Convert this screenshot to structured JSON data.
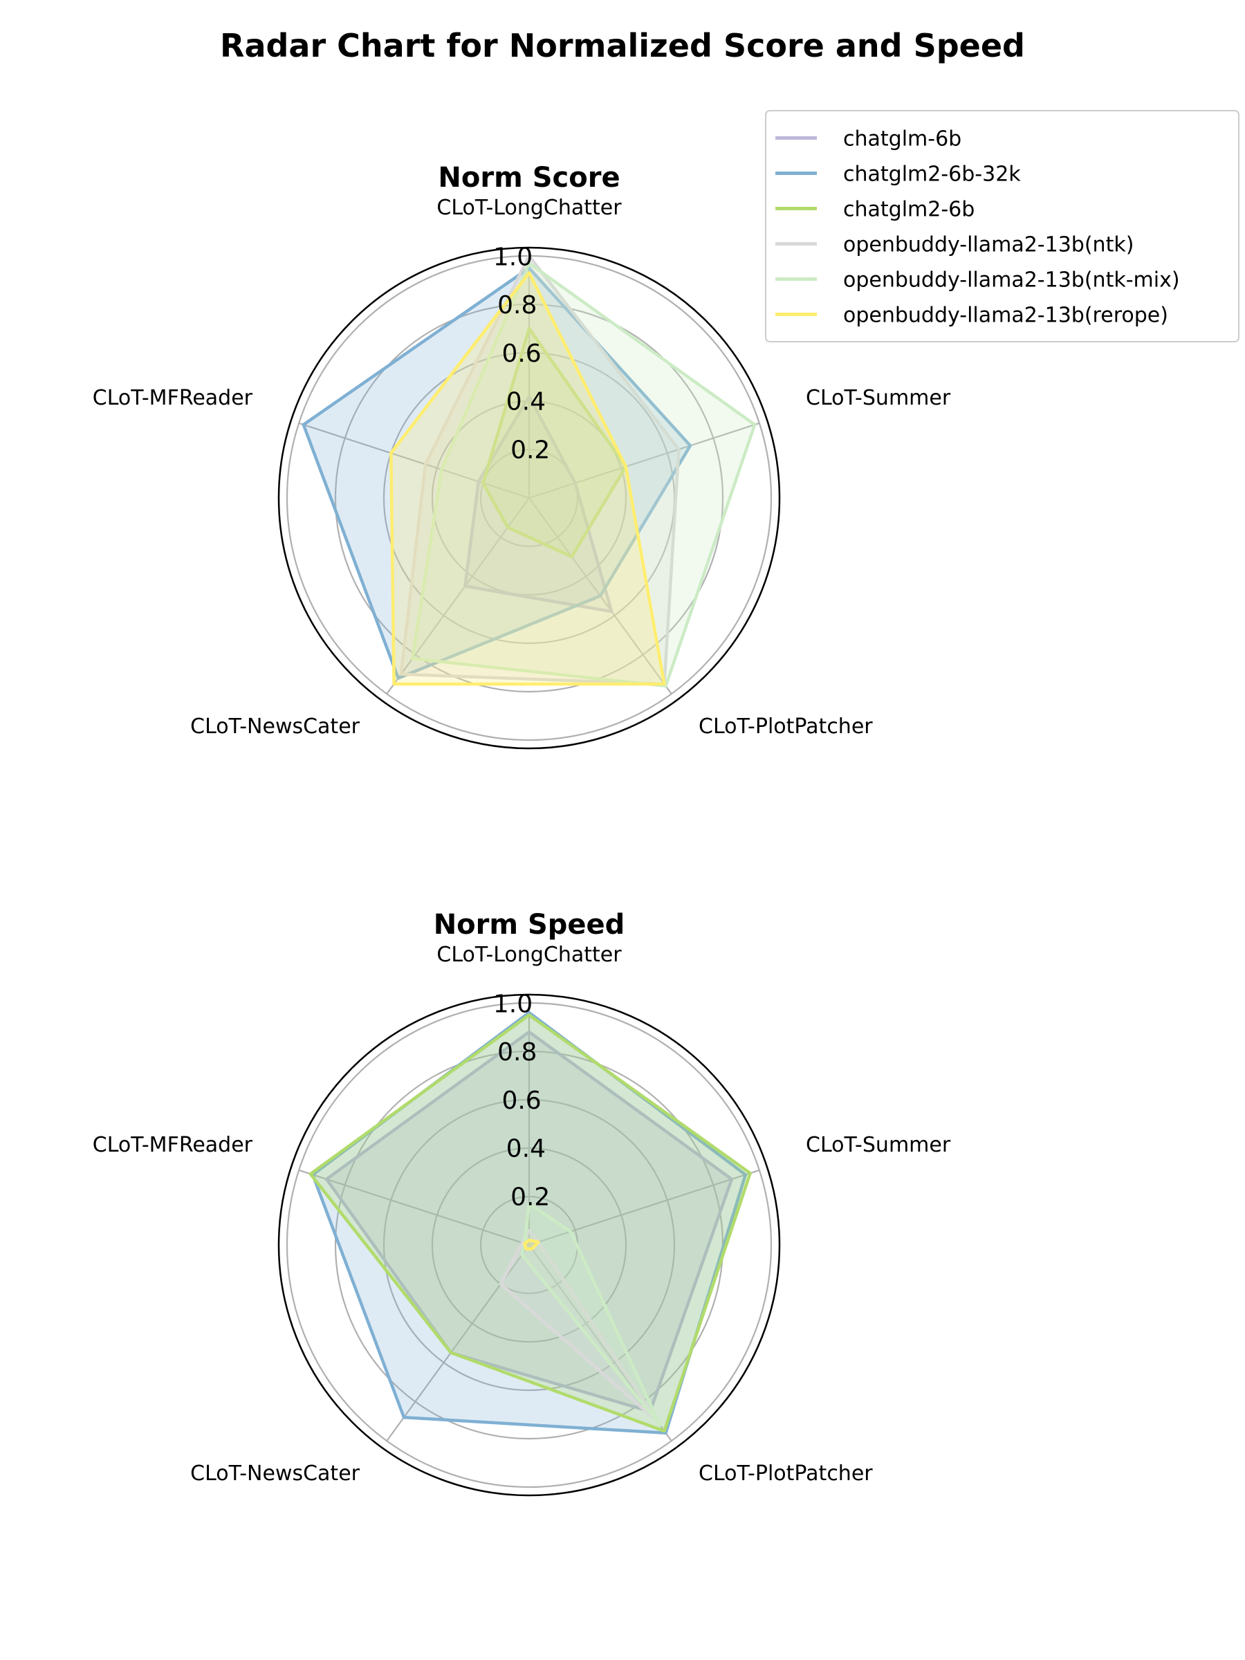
{
  "title": "Radar Chart for Normalized Score and Speed",
  "colors": {
    "chatglm-6b": "#bcb8d8",
    "chatglm2-6b-32k": "#7fb0d3",
    "chatglm2-6b": "#b1db6b",
    "openbuddy-llama2-13b(ntk)": "#d9d9d9",
    "openbuddy-llama2-13b(ntk-mix)": "#ccebc5",
    "openbuddy-llama2-13b(rerope)": "#ffed6f"
  },
  "legend": {
    "placement": "top-right",
    "entries": [
      "chatglm-6b",
      "chatglm2-6b-32k",
      "chatglm2-6b",
      "openbuddy-llama2-13b(ntk)",
      "openbuddy-llama2-13b(ntk-mix)",
      "openbuddy-llama2-13b(rerope)"
    ]
  },
  "chart_data": [
    {
      "type": "radar",
      "title": "Norm Score",
      "categories": [
        "CLoT-LongChatter",
        "CLoT-Summer",
        "CLoT-PlotPatcher",
        "CLoT-NewsCater",
        "CLoT-MFReader"
      ],
      "rlim": [
        0,
        1.0
      ],
      "rticks": [
        0.2,
        0.4,
        0.6,
        0.8,
        1.0
      ],
      "rtick_labels": [
        "0.2",
        "0.4",
        "0.6",
        "0.8",
        "1.0"
      ],
      "grid": true,
      "series": [
        {
          "name": "chatglm-6b",
          "values": [
            0.42,
            0.2,
            0.58,
            0.45,
            0.22
          ]
        },
        {
          "name": "chatglm2-6b-32k",
          "values": [
            0.95,
            0.7,
            0.5,
            0.92,
            0.98
          ]
        },
        {
          "name": "chatglm2-6b",
          "values": [
            0.7,
            0.42,
            0.3,
            0.15,
            0.2
          ]
        },
        {
          "name": "openbuddy-llama2-13b(ntk)",
          "values": [
            1.0,
            0.65,
            0.95,
            0.9,
            0.45
          ]
        },
        {
          "name": "openbuddy-llama2-13b(ntk-mix)",
          "values": [
            0.97,
            0.98,
            0.96,
            0.82,
            0.38
          ]
        },
        {
          "name": "openbuddy-llama2-13b(rerope)",
          "values": [
            0.93,
            0.42,
            0.95,
            0.95,
            0.6
          ]
        }
      ]
    },
    {
      "type": "radar",
      "title": "Norm Speed",
      "categories": [
        "CLoT-LongChatter",
        "CLoT-Summer",
        "CLoT-PlotPatcher",
        "CLoT-NewsCater",
        "CLoT-MFReader"
      ],
      "rlim": [
        0,
        1.0
      ],
      "rticks": [
        0.2,
        0.4,
        0.6,
        0.8,
        1.0
      ],
      "rtick_labels": [
        "0.2",
        "0.4",
        "0.6",
        "0.8",
        "1.0"
      ],
      "grid": true,
      "series": [
        {
          "name": "chatglm-6b",
          "values": [
            0.88,
            0.88,
            0.85,
            0.55,
            0.88
          ]
        },
        {
          "name": "chatglm2-6b-32k",
          "values": [
            0.96,
            0.94,
            0.96,
            0.88,
            0.94
          ]
        },
        {
          "name": "chatglm2-6b",
          "values": [
            0.95,
            0.96,
            0.95,
            0.55,
            0.95
          ]
        },
        {
          "name": "openbuddy-llama2-13b(ntk)",
          "values": [
            0.06,
            0.04,
            0.9,
            0.2,
            0.03
          ]
        },
        {
          "name": "openbuddy-llama2-13b(ntk-mix)",
          "values": [
            0.17,
            0.18,
            0.92,
            0.05,
            0.02
          ]
        },
        {
          "name": "openbuddy-llama2-13b(rerope)",
          "values": [
            0.02,
            0.04,
            0.02,
            0.02,
            0.02
          ]
        }
      ]
    }
  ]
}
